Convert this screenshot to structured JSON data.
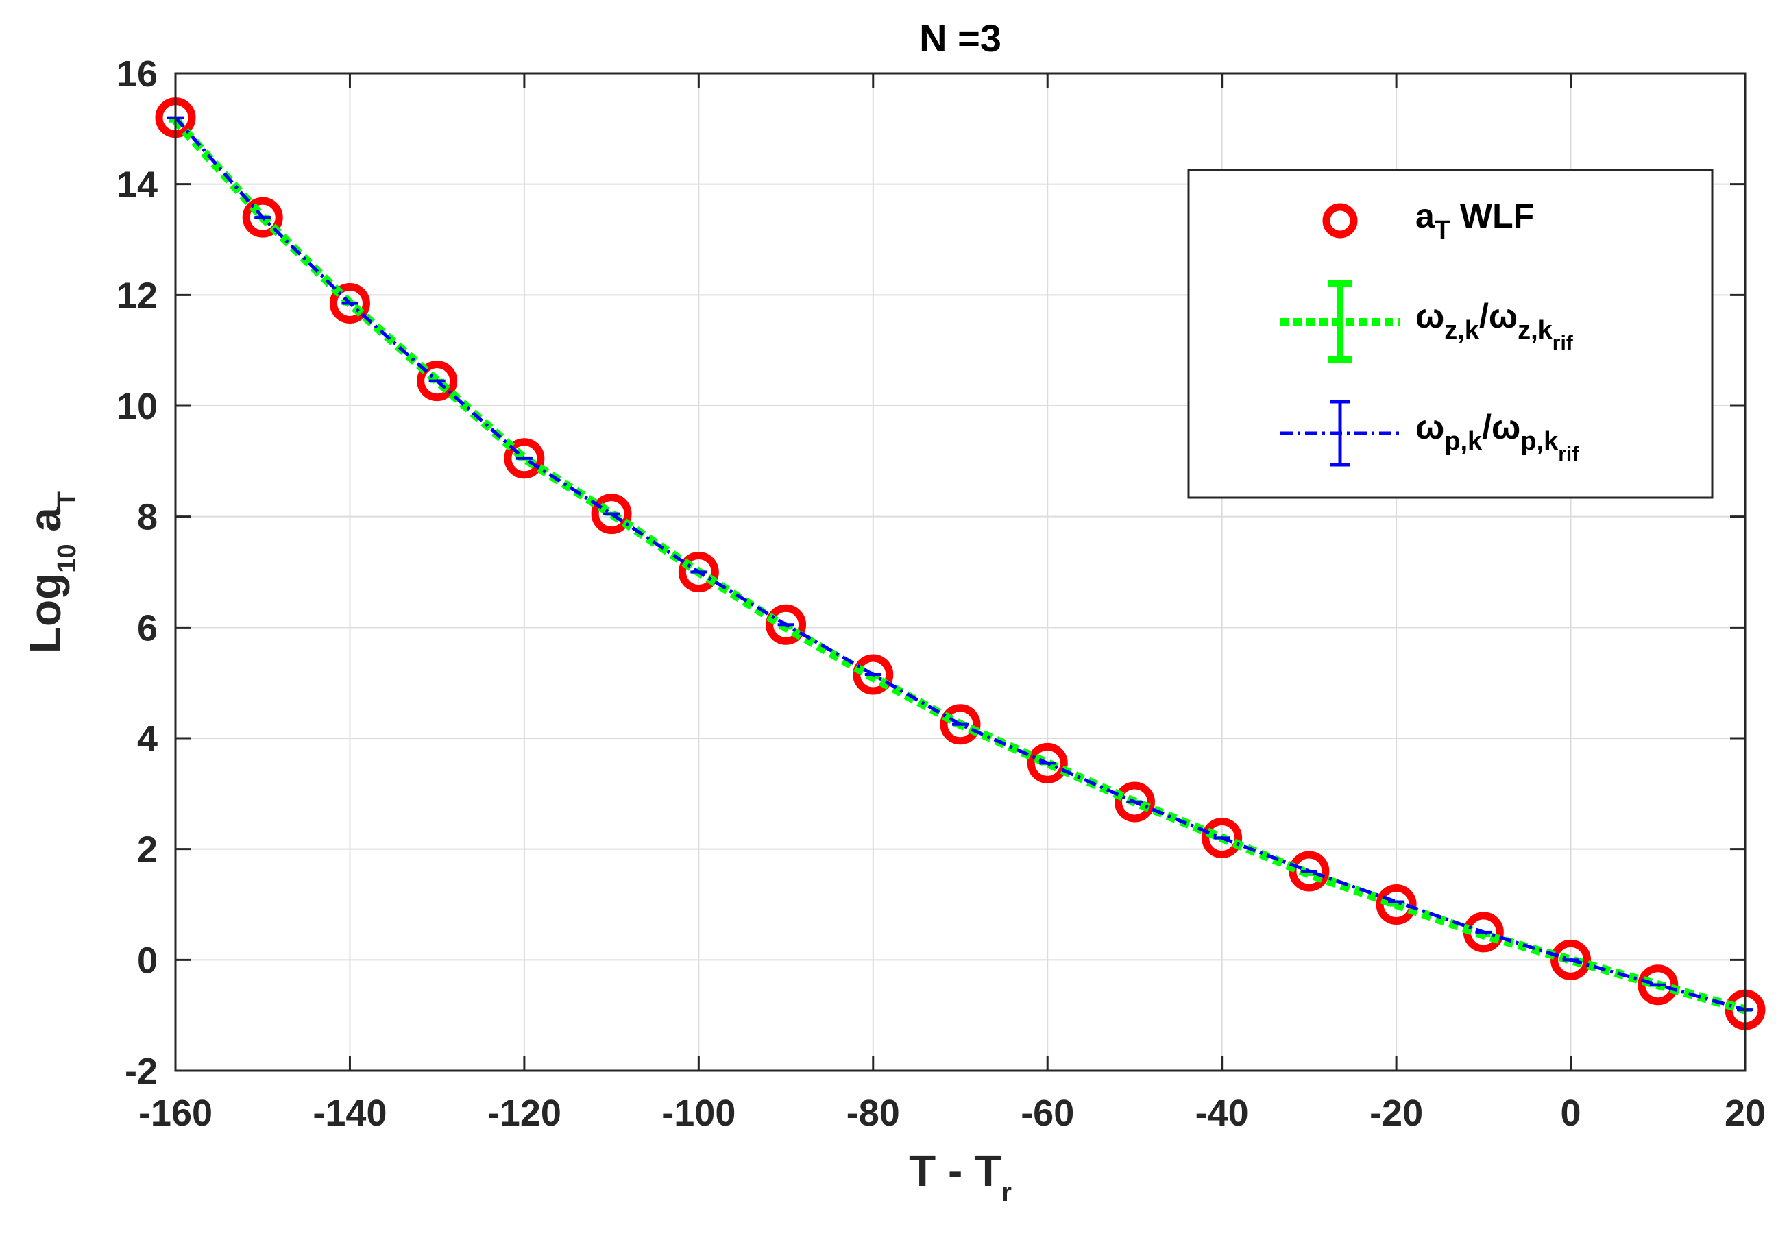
{
  "chart_data": {
    "type": "line",
    "title": "N =3",
    "xlabel": "T - T",
    "xlabel_sub": "r",
    "ylabel": "Log",
    "ylabel_sub": "10",
    "ylabel_tail": " a",
    "ylabel_tail_sub": "T",
    "xlim": [
      -160,
      20
    ],
    "ylim": [
      -2,
      16
    ],
    "xticks": [
      -160,
      -140,
      -120,
      -100,
      -80,
      -60,
      -40,
      -20,
      0,
      20
    ],
    "xtick_labels": [
      "-160",
      "-140",
      "-120",
      "-100",
      "-80",
      "-60",
      "-40",
      "-20",
      "0",
      "20"
    ],
    "yticks": [
      -2,
      0,
      2,
      4,
      6,
      8,
      10,
      12,
      14,
      16
    ],
    "ytick_labels": [
      "-2",
      "0",
      "2",
      "4",
      "6",
      "8",
      "10",
      "12",
      "14",
      "16"
    ],
    "grid": true,
    "legend_position": "top-right",
    "x": [
      -160,
      -150,
      -140,
      -130,
      -120,
      -110,
      -100,
      -90,
      -80,
      -70,
      -60,
      -50,
      -40,
      -30,
      -20,
      -10,
      0,
      10,
      20
    ],
    "series": [
      {
        "name": "aT WLF",
        "legend_main": "a",
        "legend_sub": "T",
        "legend_tail": " WLF",
        "marker": "circle",
        "color": "#ff0000",
        "values": [
          15.2,
          13.4,
          11.85,
          10.45,
          9.05,
          8.05,
          7.0,
          6.05,
          5.15,
          4.25,
          3.55,
          2.85,
          2.2,
          1.6,
          1.0,
          0.5,
          0.0,
          -0.45,
          -0.9
        ]
      },
      {
        "name": "ωz,k/ωz,krif",
        "legend_main1": "ω",
        "legend_sub1": "z,k",
        "legend_mid": "/ω",
        "legend_sub2": "z,k",
        "legend_subsub": "rif",
        "line_style": "dotted",
        "color": "#00ff00",
        "values": [
          15.15,
          13.4,
          11.85,
          10.45,
          9.05,
          8.05,
          7.0,
          6.0,
          5.1,
          4.25,
          3.55,
          2.85,
          2.2,
          1.55,
          1.0,
          0.45,
          0.0,
          -0.45,
          -0.9
        ]
      },
      {
        "name": "ωp,k/ωp,krif",
        "legend_main1": "ω",
        "legend_sub1": "p,k",
        "legend_mid": "/ω",
        "legend_sub2": "p,k",
        "legend_subsub": "rif",
        "line_style": "dash-dot",
        "color": "#0000ff",
        "values": [
          15.2,
          13.4,
          11.85,
          10.45,
          9.05,
          8.05,
          7.0,
          6.05,
          5.15,
          4.25,
          3.55,
          2.85,
          2.2,
          1.6,
          1.05,
          0.5,
          0.0,
          -0.45,
          -0.9
        ]
      }
    ]
  }
}
